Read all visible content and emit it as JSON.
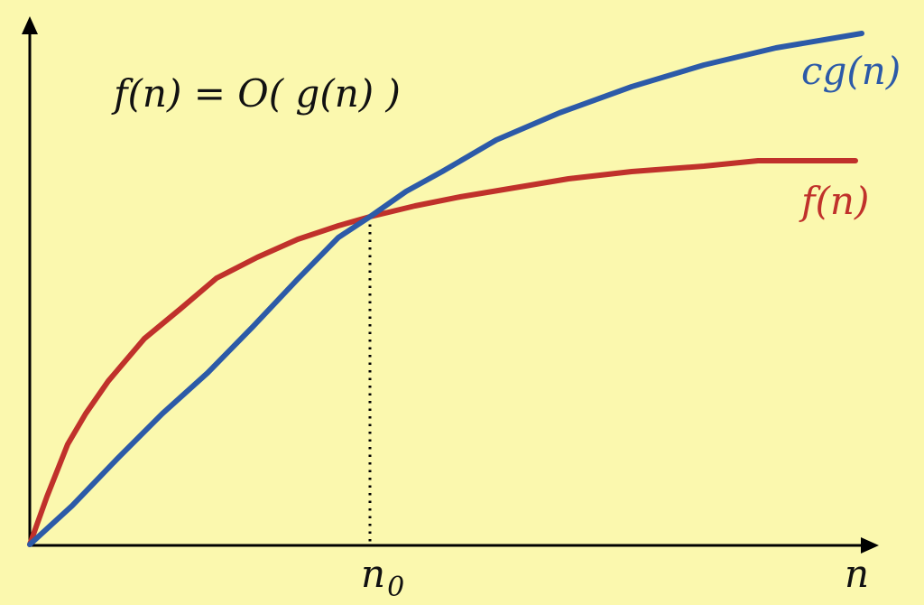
{
  "title": "f(n) = O( g(n) )",
  "curves": [
    {
      "label": "cg(n)",
      "color": "#2c5aa8",
      "shape": "rises roughly linearly from the origin, crosses f(n) at n0, and stays above it afterwards"
    },
    {
      "label": "f(n)",
      "color": "#c0312b",
      "shape": "rises steeply from the origin and flattens; above cg(n) before n0, below it after"
    }
  ],
  "intersection_label": "n",
  "intersection_subscript": "0",
  "x_axis_label": "n",
  "colors": {
    "background": "#fbf8ae",
    "axis": "#000000",
    "cg_curve": "#2c5aa8",
    "f_curve": "#c0312b"
  }
}
